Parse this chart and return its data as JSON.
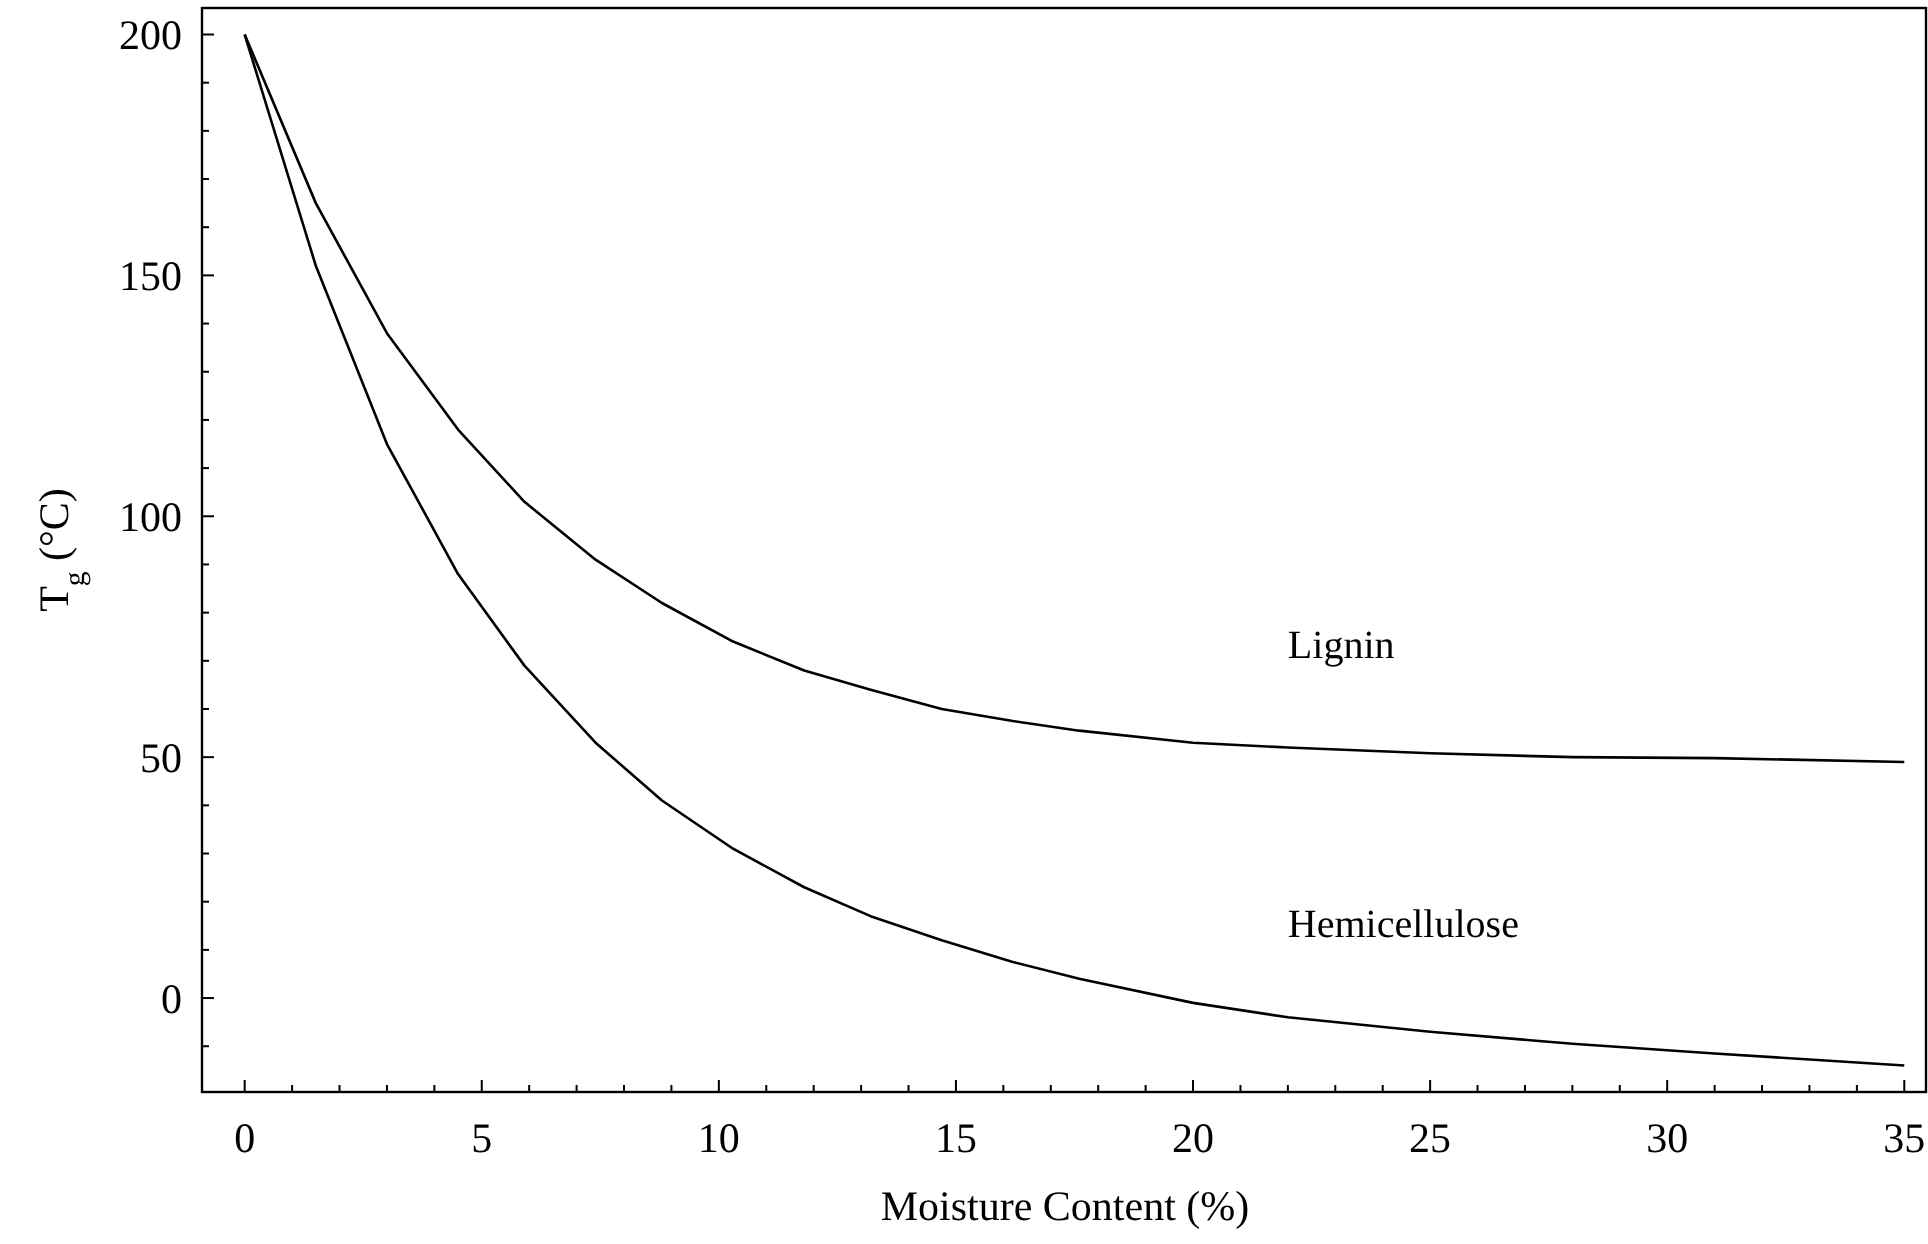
{
  "chart_data": {
    "type": "line",
    "xlabel": "Moisture Content (%)",
    "ylabel": "T$_{g}$ (°C)",
    "xlim": [
      -0.9,
      35.5
    ],
    "ylim": [
      -19.5,
      205.5
    ],
    "xticks": [
      0,
      {
        "value": 1,
        "label": null
      },
      {
        "value": 2,
        "label": null
      },
      {
        "value": 3,
        "label": null
      },
      {
        "value": 4,
        "label": null
      },
      5,
      {
        "value": 6,
        "label": null
      },
      {
        "value": 7,
        "label": null
      },
      {
        "value": 8,
        "label": null
      },
      {
        "value": 9,
        "label": null
      },
      10,
      {
        "value": 11,
        "label": null
      },
      {
        "value": 12,
        "label": null
      },
      {
        "value": 13,
        "label": null
      },
      {
        "value": 14,
        "label": null
      },
      15,
      {
        "value": 16,
        "label": null
      },
      {
        "value": 17,
        "label": null
      },
      {
        "value": 18,
        "label": null
      },
      {
        "value": 19,
        "label": null
      },
      20,
      {
        "value": 21,
        "label": null
      },
      {
        "value": 22,
        "label": null
      },
      {
        "value": 23,
        "label": null
      },
      {
        "value": 24,
        "label": null
      },
      25,
      {
        "value": 26,
        "label": null
      },
      {
        "value": 27,
        "label": null
      },
      {
        "value": 28,
        "label": null
      },
      {
        "value": 29,
        "label": null
      },
      30,
      {
        "value": 31,
        "label": null
      },
      {
        "value": 32,
        "label": null
      },
      {
        "value": 33,
        "label": null
      },
      {
        "value": 34,
        "label": null
      },
      35
    ],
    "yticks": [
      {
        "value": -10,
        "label": null
      },
      0,
      {
        "value": 10,
        "label": null
      },
      {
        "value": 20,
        "label": null
      },
      {
        "value": 30,
        "label": null
      },
      {
        "value": 40,
        "label": null
      },
      50,
      {
        "value": 60,
        "label": null
      },
      {
        "value": 70,
        "label": null
      },
      {
        "value": 80,
        "label": null
      },
      {
        "value": 90,
        "label": null
      },
      100,
      {
        "value": 110,
        "label": null
      },
      {
        "value": 120,
        "label": null
      },
      {
        "value": 130,
        "label": null
      },
      {
        "value": 140,
        "label": null
      },
      150,
      {
        "value": 160,
        "label": null
      },
      {
        "value": 170,
        "label": null
      },
      {
        "value": 180,
        "label": null
      },
      {
        "value": 190,
        "label": null
      },
      200
    ],
    "x": [
      0,
      1.5,
      3,
      4.5,
      5.9,
      7.4,
      8.8,
      10.3,
      11.8,
      13.2,
      14.7,
      16.2,
      17.6,
      20,
      22,
      25,
      28,
      31,
      35
    ],
    "grid": false,
    "marker": "none",
    "line_style": "solid",
    "series": [
      {
        "name": "Lignin",
        "color": "#000000",
        "values": [
          200,
          165,
          138,
          118,
          103,
          91,
          82,
          74,
          68,
          64,
          60,
          57.5,
          55.5,
          53,
          52,
          50.8,
          50,
          49.8,
          49
        ]
      },
      {
        "name": "Hemicellulose",
        "color": "#000000",
        "values": [
          200,
          152,
          115,
          88,
          69,
          53,
          41,
          31,
          23,
          17,
          12,
          7.5,
          4,
          -1,
          -4,
          -7,
          -9.5,
          -11.5,
          -14
        ]
      }
    ]
  }
}
